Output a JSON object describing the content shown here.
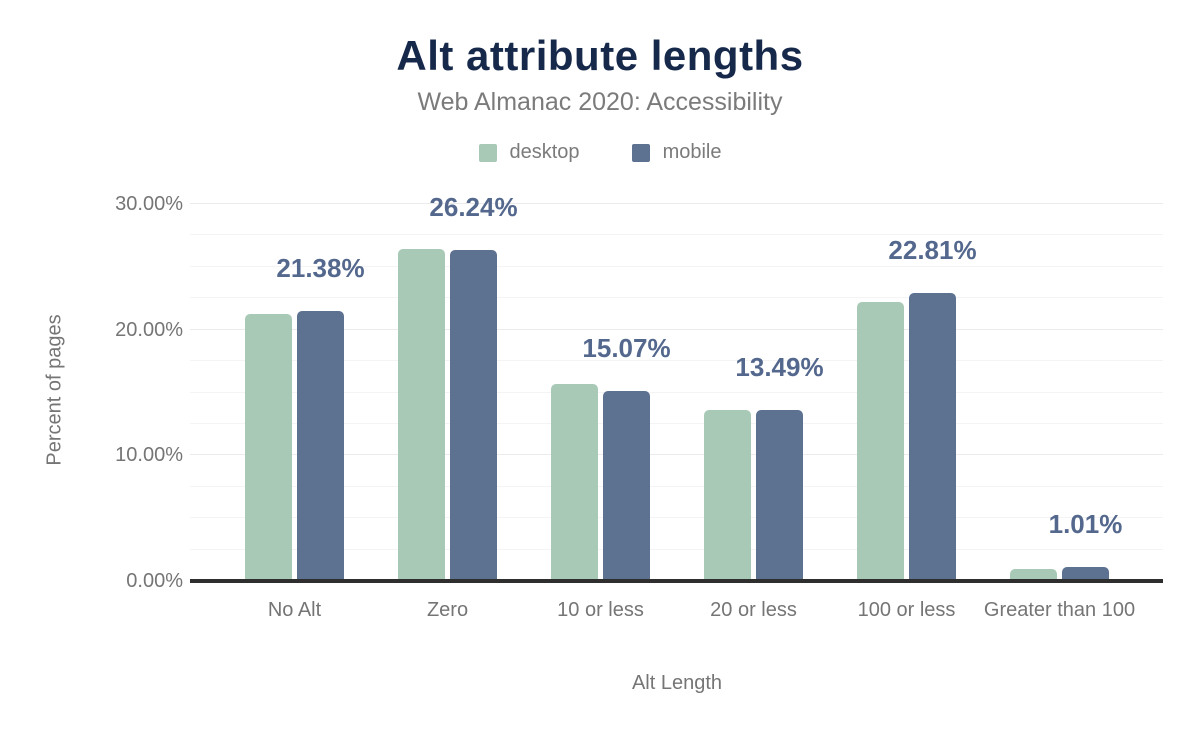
{
  "header": {
    "title": "Alt attribute lengths",
    "subtitle": "Web Almanac 2020: Accessibility"
  },
  "legend": [
    {
      "label": "desktop",
      "color": "#a8c9b6"
    },
    {
      "label": "mobile",
      "color": "#5d7190"
    }
  ],
  "colors": {
    "desktop_bar": "#a8c9b6",
    "mobile_bar": "#5d7190",
    "title_text": "#16294b",
    "muted_text": "#757575",
    "data_label_text": "#54688e",
    "axis_line": "#2e2e2e",
    "gridline": "#f0f0f0"
  },
  "chart_data": {
    "type": "bar",
    "title": "Alt attribute lengths",
    "subtitle": "Web Almanac 2020: Accessibility",
    "categories": [
      "No Alt",
      "Zero",
      "10 or less",
      "20 or less",
      "100 or less",
      "Greater than 100"
    ],
    "series": [
      {
        "name": "desktop",
        "color": "#a8c9b6",
        "values": [
          21.15,
          26.35,
          15.6,
          13.5,
          22.1,
          0.88
        ]
      },
      {
        "name": "mobile",
        "color": "#5d7190",
        "values": [
          21.38,
          26.24,
          15.07,
          13.49,
          22.81,
          1.01
        ]
      }
    ],
    "data_labels": [
      "21.38%",
      "26.24%",
      "15.07%",
      "13.49%",
      "22.81%",
      "1.01%"
    ],
    "data_labels_series": "mobile",
    "xlabel": "Alt Length",
    "ylabel": "Percent of pages",
    "ylim": [
      0,
      30
    ],
    "yticks": [
      "0.00%",
      "10.00%",
      "20.00%",
      "30.00%"
    ],
    "ytick_values": [
      0,
      10,
      20,
      30
    ],
    "minor_grid_step_pct": 2.5,
    "grid": "horizontal",
    "legend_position": "top"
  }
}
